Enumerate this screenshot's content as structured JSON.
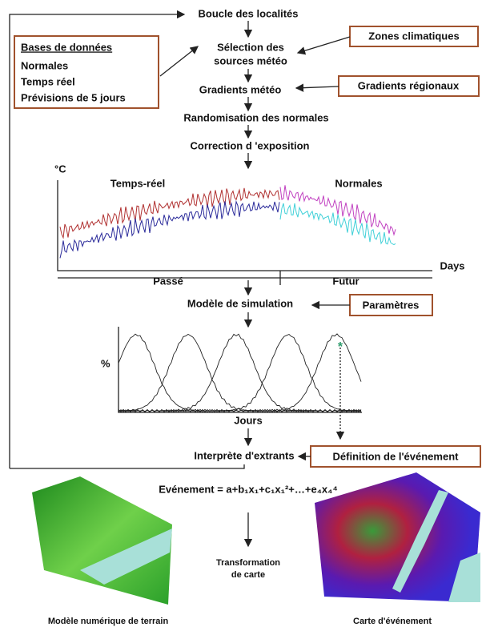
{
  "flow": {
    "loop": "Boucle des localités",
    "selection": [
      "Sélection des",
      "sources météo"
    ],
    "gradients": "Gradients météo",
    "randomisation": "Randomisation des normales",
    "correction": "Correction d 'exposition",
    "simulation": "Modèle de simulation",
    "interpretation": "Interprète d'extrants",
    "formula": "Evénement = a+b₁x₁+c₁x₁²+…+e₄x₄⁴",
    "transformation": [
      "Transformation",
      "de carte"
    ]
  },
  "inputs": {
    "databases": {
      "title": "Bases de données",
      "items": [
        "Normales",
        "Temps réel",
        "Prévisions de 5 jours"
      ]
    },
    "climate_zones": "Zones climatiques",
    "regional_gradients": "Gradients régionaux",
    "parameters": "Paramètres",
    "event_definition": "Définition de l'événement"
  },
  "temperature_plot": {
    "y_label": "°C",
    "real_time": "Temps-réel",
    "normals": "Normales",
    "x_label": "Days",
    "past": "Passé",
    "future": "Futur"
  },
  "probability_plot": {
    "y_label": "%",
    "x_label": "Jours"
  },
  "maps": {
    "terrain": "Modèle numérique de terrain",
    "event": "Carte d'événement"
  }
}
